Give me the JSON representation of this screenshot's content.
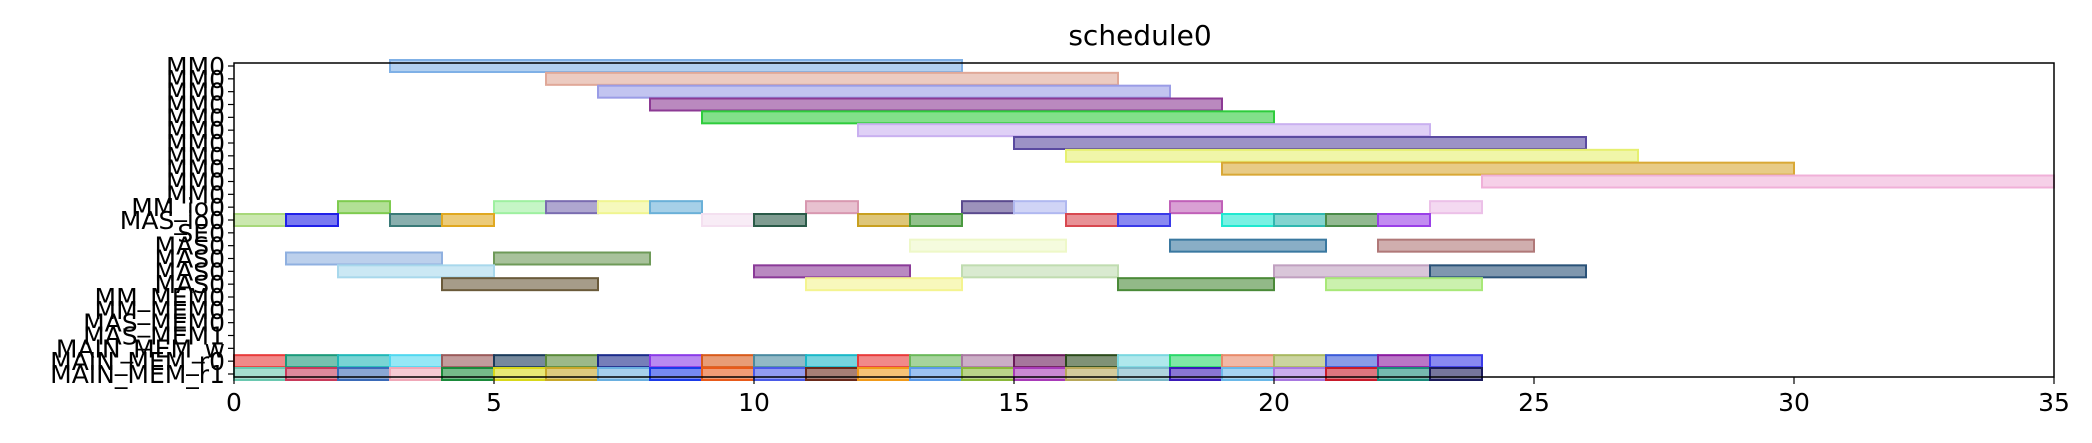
{
  "chart_data": {
    "type": "gantt",
    "title": "schedule0",
    "xlim": [
      0,
      35
    ],
    "x_ticks": [
      0,
      5,
      10,
      15,
      20,
      25,
      30,
      35
    ],
    "x_tick_labels": [
      "0",
      "5",
      "10",
      "15",
      "20",
      "25",
      "30",
      "35"
    ],
    "grid": false,
    "rows": [
      {
        "label": "MM0",
        "segments": [
          {
            "start": 3,
            "end": 14,
            "color": "#7fb0e6"
          }
        ]
      },
      {
        "label": "MM0",
        "segments": [
          {
            "start": 6,
            "end": 17,
            "color": "#e0a898"
          }
        ]
      },
      {
        "label": "MM0",
        "segments": [
          {
            "start": 7,
            "end": 18,
            "color": "#9a9ce6"
          }
        ]
      },
      {
        "label": "MM0",
        "segments": [
          {
            "start": 8,
            "end": 19,
            "color": "#8c3a94"
          }
        ]
      },
      {
        "label": "MM0",
        "segments": [
          {
            "start": 9,
            "end": 20,
            "color": "#2ecc3c"
          }
        ]
      },
      {
        "label": "MM0",
        "segments": [
          {
            "start": 12,
            "end": 23,
            "color": "#c9b0f0"
          }
        ]
      },
      {
        "label": "MM0",
        "segments": [
          {
            "start": 15,
            "end": 26,
            "color": "#5a4aa0"
          }
        ]
      },
      {
        "label": "MM0",
        "segments": [
          {
            "start": 16,
            "end": 27,
            "color": "#e6f070"
          }
        ]
      },
      {
        "label": "MM0",
        "segments": [
          {
            "start": 19,
            "end": 30,
            "color": "#d9a836"
          }
        ]
      },
      {
        "label": "MM0",
        "segments": [
          {
            "start": 24,
            "end": 35,
            "color": "#f0b0d8"
          }
        ]
      },
      {
        "label": "MM0",
        "segments": []
      },
      {
        "label": "MM_io0",
        "segments": [
          {
            "start": 2,
            "end": 3,
            "color": "#7ecb4f"
          },
          {
            "start": 5,
            "end": 6,
            "color": "#9ef0a0"
          },
          {
            "start": 6,
            "end": 7,
            "color": "#7a6cb0"
          },
          {
            "start": 7,
            "end": 8,
            "color": "#f0f590"
          },
          {
            "start": 8,
            "end": 9,
            "color": "#6ab0d8"
          },
          {
            "start": 11,
            "end": 12,
            "color": "#d898b0"
          },
          {
            "start": 14,
            "end": 15,
            "color": "#5a4a8e"
          },
          {
            "start": 15,
            "end": 16,
            "color": "#b0b8f0"
          },
          {
            "start": 18,
            "end": 19,
            "color": "#c060b8"
          },
          {
            "start": 23,
            "end": 24,
            "color": "#ecc0e8"
          }
        ]
      },
      {
        "label": "MAS_io0",
        "segments": [
          {
            "start": 0,
            "end": 1,
            "color": "#a8d87a"
          },
          {
            "start": 1,
            "end": 2,
            "color": "#2020e8"
          },
          {
            "start": 3,
            "end": 4,
            "color": "#3a7a78"
          },
          {
            "start": 4,
            "end": 5,
            "color": "#e0a820"
          },
          {
            "start": 9,
            "end": 10,
            "color": "#f4e0f0"
          },
          {
            "start": 10,
            "end": 11,
            "color": "#2a5a48"
          },
          {
            "start": 12,
            "end": 13,
            "color": "#c8a020"
          },
          {
            "start": 13,
            "end": 14,
            "color": "#4a9a40"
          },
          {
            "start": 16,
            "end": 17,
            "color": "#d84850"
          },
          {
            "start": 17,
            "end": 18,
            "color": "#3a3ae8"
          },
          {
            "start": 19,
            "end": 20,
            "color": "#20e8d0"
          },
          {
            "start": 20,
            "end": 21,
            "color": "#30b8b0"
          },
          {
            "start": 21,
            "end": 22,
            "color": "#4a8a48"
          },
          {
            "start": 22,
            "end": 23,
            "color": "#9a40e8"
          }
        ]
      },
      {
        "label": "SE0",
        "segments": []
      },
      {
        "label": "MAS0",
        "segments": [
          {
            "start": 13,
            "end": 16,
            "color": "#eef8c8"
          },
          {
            "start": 18,
            "end": 21,
            "color": "#3a78a0"
          },
          {
            "start": 22,
            "end": 25,
            "color": "#b07878"
          }
        ]
      },
      {
        "label": "MAS0",
        "segments": [
          {
            "start": 1,
            "end": 4,
            "color": "#8fb0e0"
          },
          {
            "start": 5,
            "end": 8,
            "color": "#6e9a58"
          }
        ]
      },
      {
        "label": "MAS0",
        "segments": [
          {
            "start": 2,
            "end": 5,
            "color": "#a8d8ec"
          },
          {
            "start": 10,
            "end": 13,
            "color": "#8a3a98"
          },
          {
            "start": 14,
            "end": 17,
            "color": "#c0dcb0"
          },
          {
            "start": 20,
            "end": 23,
            "color": "#c0a0c0"
          },
          {
            "start": 23,
            "end": 26,
            "color": "#2a5278"
          }
        ]
      },
      {
        "label": "MAS0",
        "segments": [
          {
            "start": 4,
            "end": 7,
            "color": "#6a5a3a"
          },
          {
            "start": 11,
            "end": 14,
            "color": "#f4f490"
          },
          {
            "start": 17,
            "end": 20,
            "color": "#4a8a38"
          },
          {
            "start": 21,
            "end": 24,
            "color": "#a8e878"
          }
        ]
      },
      {
        "label": "MM_MEM0",
        "segments": []
      },
      {
        "label": "MM_MEM0",
        "segments": []
      },
      {
        "label": "MAS_MEM0",
        "segments": []
      },
      {
        "label": "MAS_MEM1",
        "segments": []
      },
      {
        "label": "MAIN_MEM_w",
        "segments": []
      },
      {
        "label": "MAIN_MEM_r0",
        "segments": [
          {
            "start": 0,
            "end": 1,
            "color": "#e83a3a"
          },
          {
            "start": 1,
            "end": 2,
            "color": "#1a9a7a"
          },
          {
            "start": 2,
            "end": 3,
            "color": "#20b8b8"
          },
          {
            "start": 3,
            "end": 4,
            "color": "#50d8f0"
          },
          {
            "start": 4,
            "end": 5,
            "color": "#9a5a5a"
          },
          {
            "start": 5,
            "end": 6,
            "color": "#1a3a5a"
          },
          {
            "start": 6,
            "end": 7,
            "color": "#5a8a3a"
          },
          {
            "start": 7,
            "end": 8,
            "color": "#1a2a8a"
          },
          {
            "start": 8,
            "end": 9,
            "color": "#8a3ae8"
          },
          {
            "start": 9,
            "end": 10,
            "color": "#d85a1a"
          },
          {
            "start": 10,
            "end": 11,
            "color": "#4a8aa0"
          },
          {
            "start": 11,
            "end": 12,
            "color": "#1ab8c8"
          },
          {
            "start": 12,
            "end": 13,
            "color": "#e83a3a"
          },
          {
            "start": 13,
            "end": 14,
            "color": "#6ab85a"
          },
          {
            "start": 14,
            "end": 15,
            "color": "#a878a0"
          },
          {
            "start": 15,
            "end": 16,
            "color": "#6a1a5a"
          },
          {
            "start": 16,
            "end": 17,
            "color": "#2a4a1a"
          },
          {
            "start": 17,
            "end": 18,
            "color": "#7ad8e0"
          },
          {
            "start": 18,
            "end": 19,
            "color": "#2ad86a"
          },
          {
            "start": 19,
            "end": 20,
            "color": "#e88a6a"
          },
          {
            "start": 20,
            "end": 21,
            "color": "#a8b860"
          },
          {
            "start": 21,
            "end": 22,
            "color": "#3a5ad8"
          },
          {
            "start": 22,
            "end": 23,
            "color": "#8a1aa0"
          },
          {
            "start": 23,
            "end": 24,
            "color": "#3a3ae8"
          }
        ]
      },
      {
        "label": "MAIN_MEM_r1",
        "segments": [
          {
            "start": 0,
            "end": 1,
            "color": "#6ac8b0"
          },
          {
            "start": 1,
            "end": 2,
            "color": "#c83a5a"
          },
          {
            "start": 2,
            "end": 3,
            "color": "#3a6ab8"
          },
          {
            "start": 3,
            "end": 4,
            "color": "#f0a8b8"
          },
          {
            "start": 4,
            "end": 5,
            "color": "#1a8a3a"
          },
          {
            "start": 5,
            "end": 6,
            "color": "#d8d81a"
          },
          {
            "start": 6,
            "end": 7,
            "color": "#c8a82a"
          },
          {
            "start": 7,
            "end": 8,
            "color": "#6ab0e0"
          },
          {
            "start": 8,
            "end": 9,
            "color": "#1a3ae8"
          },
          {
            "start": 9,
            "end": 10,
            "color": "#e85a1a"
          },
          {
            "start": 10,
            "end": 11,
            "color": "#4a5ae8"
          },
          {
            "start": 11,
            "end": 12,
            "color": "#6a2a1a"
          },
          {
            "start": 12,
            "end": 13,
            "color": "#f09a1a"
          },
          {
            "start": 13,
            "end": 14,
            "color": "#5a9ae8"
          },
          {
            "start": 14,
            "end": 15,
            "color": "#8ab83a"
          },
          {
            "start": 15,
            "end": 16,
            "color": "#a83ab8"
          },
          {
            "start": 16,
            "end": 17,
            "color": "#b8a85a"
          },
          {
            "start": 17,
            "end": 18,
            "color": "#7ab8c8"
          },
          {
            "start": 18,
            "end": 19,
            "color": "#3a1ab8"
          },
          {
            "start": 19,
            "end": 20,
            "color": "#6ab8e8"
          },
          {
            "start": 20,
            "end": 21,
            "color": "#a878e0"
          },
          {
            "start": 21,
            "end": 22,
            "color": "#c81a2a"
          },
          {
            "start": 22,
            "end": 23,
            "color": "#1a8a7a"
          },
          {
            "start": 23,
            "end": 24,
            "color": "#1a1a5a"
          }
        ]
      }
    ]
  }
}
